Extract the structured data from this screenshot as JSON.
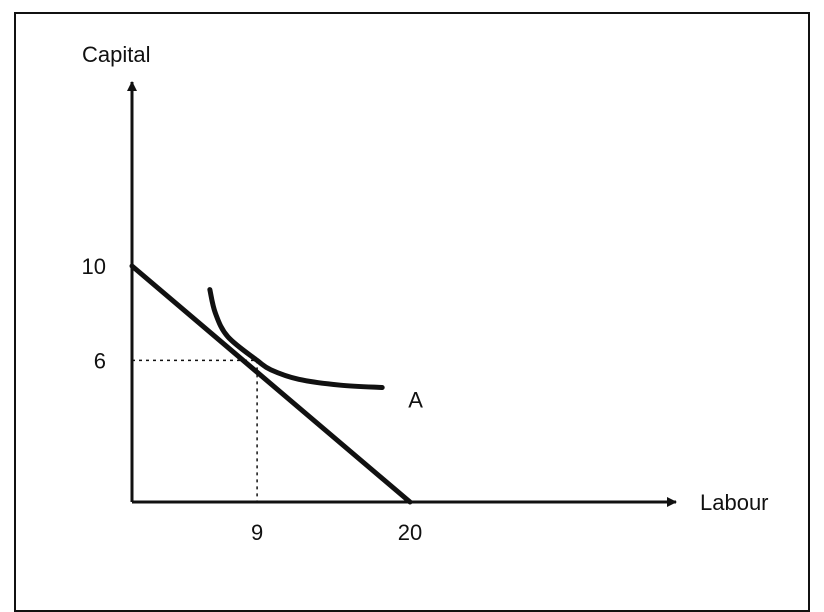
{
  "chart_data": {
    "type": "line",
    "title": "",
    "xlabel": "Labour",
    "ylabel": "Capital",
    "xlim": [
      0,
      40
    ],
    "ylim": [
      0,
      20
    ],
    "grid": false,
    "x_ticks": [
      {
        "value": 9,
        "label": "9"
      },
      {
        "value": 20,
        "label": "20"
      }
    ],
    "y_ticks": [
      {
        "value": 10,
        "label": "10"
      },
      {
        "value": 6,
        "label": "6"
      }
    ],
    "series": [
      {
        "kind": "isocost",
        "points": [
          [
            0,
            10
          ],
          [
            20,
            0
          ]
        ]
      },
      {
        "kind": "isoquant",
        "label": "A",
        "points": [
          [
            5.6,
            9
          ],
          [
            6,
            8
          ],
          [
            6.9,
            7
          ],
          [
            9,
            6
          ],
          [
            10,
            5.6
          ],
          [
            12,
            5.2
          ],
          [
            15,
            4.95
          ],
          [
            18,
            4.85
          ]
        ]
      }
    ],
    "tangency": {
      "x": 9,
      "y": 6,
      "guides": "dashed"
    }
  },
  "colors": {
    "ink": "#111111",
    "background": "#ffffff"
  }
}
